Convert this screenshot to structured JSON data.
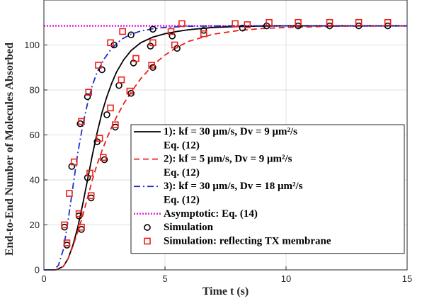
{
  "chart_data": {
    "type": "line",
    "xlabel": "Time t (s)",
    "ylabel": "End-to-End Number of Molecules Absorbed",
    "xlim": [
      0,
      15
    ],
    "ylim": [
      0,
      120
    ],
    "xticks": [
      0,
      5,
      10,
      15
    ],
    "yticks": [
      0,
      20,
      40,
      60,
      80,
      100
    ],
    "grid": true,
    "legend_position": "bottom-right",
    "legend": [
      {
        "id": "s1",
        "lines": [
          "1): kf = 30 μm/s, Dv = 9 μm²/s",
          "Eq. (12)"
        ]
      },
      {
        "id": "s2",
        "lines": [
          "2): kf = 5 μm/s, Dv = 9 μm²/s",
          "Eq. (12)"
        ]
      },
      {
        "id": "s3",
        "lines": [
          "3): kf = 30 μm/s, Dv = 18 μm²/s",
          "Eq. (12)"
        ]
      },
      {
        "id": "asym",
        "lines": [
          "Asymptotic: Eq. (14)"
        ]
      },
      {
        "id": "sim",
        "lines": [
          "Simulation"
        ]
      },
      {
        "id": "simref",
        "lines": [
          "Simulation: reflecting TX membrane"
        ]
      }
    ],
    "asymptote": 108.5,
    "series": [
      {
        "id": "s1",
        "color": "#000000",
        "dash": "solid",
        "x": [
          0,
          0.5,
          0.8,
          1.0,
          1.2,
          1.4,
          1.6,
          1.8,
          2.0,
          2.2,
          2.4,
          2.6,
          2.8,
          3.0,
          3.3,
          3.6,
          4.0,
          4.5,
          5.0,
          5.5,
          6.0,
          7.0,
          8.0,
          9.0,
          10.0,
          12.0,
          15.0
        ],
        "y": [
          0,
          0,
          1.5,
          5,
          11,
          19,
          29,
          40,
          51,
          61,
          70,
          77,
          83,
          88,
          93.5,
          97.5,
          101,
          103.5,
          105,
          106,
          106.8,
          107.8,
          108.2,
          108.4,
          108.5,
          108.5,
          108.5
        ]
      },
      {
        "id": "s2",
        "color": "#e8221b",
        "dash": "dashed",
        "x": [
          0,
          0.5,
          0.8,
          1.0,
          1.2,
          1.4,
          1.6,
          1.8,
          2.0,
          2.2,
          2.4,
          2.6,
          2.8,
          3.0,
          3.3,
          3.6,
          4.0,
          4.5,
          5.0,
          5.5,
          6.0,
          7.0,
          8.0,
          9.0,
          10.0,
          12.0,
          15.0
        ],
        "y": [
          0,
          0,
          1.5,
          5,
          10.5,
          17,
          24,
          32,
          40,
          47,
          53,
          58.5,
          63.5,
          68,
          74,
          79,
          85,
          91,
          95.5,
          99,
          101.7,
          104.8,
          106.4,
          107.3,
          107.8,
          108.3,
          108.5
        ]
      },
      {
        "id": "s3",
        "color": "#1f2fc8",
        "dash": "dashdot",
        "x": [
          0,
          0.4,
          0.6,
          0.8,
          1.0,
          1.2,
          1.4,
          1.6,
          1.8,
          2.0,
          2.2,
          2.5,
          2.8,
          3.2,
          3.6,
          4.0,
          4.5,
          5.0,
          6.0,
          7.0,
          8.0,
          10.0,
          15.0
        ],
        "y": [
          0,
          0,
          2,
          9,
          22,
          37,
          52,
          64,
          74,
          82,
          88,
          94,
          98.5,
          102.5,
          104.8,
          106.2,
          107.2,
          107.8,
          108.3,
          108.4,
          108.5,
          108.5,
          108.5
        ]
      }
    ],
    "simulation_points": [
      {
        "x": 0.85,
        "y": 19
      },
      {
        "x": 1.15,
        "y": 46
      },
      {
        "x": 1.5,
        "y": 65
      },
      {
        "x": 1.8,
        "y": 77
      },
      {
        "x": 2.4,
        "y": 89
      },
      {
        "x": 2.9,
        "y": 100
      },
      {
        "x": 3.6,
        "y": 104.5
      },
      {
        "x": 4.5,
        "y": 107
      },
      {
        "x": 0.95,
        "y": 11
      },
      {
        "x": 1.45,
        "y": 24
      },
      {
        "x": 1.8,
        "y": 41
      },
      {
        "x": 2.2,
        "y": 57
      },
      {
        "x": 2.6,
        "y": 69
      },
      {
        "x": 3.1,
        "y": 82
      },
      {
        "x": 3.7,
        "y": 92
      },
      {
        "x": 4.4,
        "y": 99.5
      },
      {
        "x": 5.3,
        "y": 104
      },
      {
        "x": 6.6,
        "y": 106.5
      },
      {
        "x": 8.2,
        "y": 107.5
      },
      {
        "x": 1.55,
        "y": 18
      },
      {
        "x": 1.95,
        "y": 32
      },
      {
        "x": 2.5,
        "y": 49
      },
      {
        "x": 2.95,
        "y": 63.5
      },
      {
        "x": 3.6,
        "y": 78.5
      },
      {
        "x": 4.5,
        "y": 90
      },
      {
        "x": 5.5,
        "y": 98.5
      },
      {
        "x": 9.2,
        "y": 108.5
      },
      {
        "x": 10.5,
        "y": 108.5
      },
      {
        "x": 11.8,
        "y": 108.5
      },
      {
        "x": 13.0,
        "y": 108.5
      },
      {
        "x": 14.2,
        "y": 108.5
      }
    ],
    "simulation_reflecting_points": [
      {
        "x": 0.85,
        "y": 20
      },
      {
        "x": 1.05,
        "y": 34
      },
      {
        "x": 1.25,
        "y": 48
      },
      {
        "x": 1.55,
        "y": 66
      },
      {
        "x": 1.85,
        "y": 79
      },
      {
        "x": 2.25,
        "y": 91
      },
      {
        "x": 2.75,
        "y": 101
      },
      {
        "x": 3.25,
        "y": 106
      },
      {
        "x": 0.95,
        "y": 12
      },
      {
        "x": 1.45,
        "y": 25
      },
      {
        "x": 1.9,
        "y": 43
      },
      {
        "x": 2.3,
        "y": 58.5
      },
      {
        "x": 2.75,
        "y": 72
      },
      {
        "x": 3.2,
        "y": 84.5
      },
      {
        "x": 3.8,
        "y": 94
      },
      {
        "x": 4.5,
        "y": 101
      },
      {
        "x": 5.25,
        "y": 106
      },
      {
        "x": 5.7,
        "y": 109.5
      },
      {
        "x": 6.6,
        "y": 105
      },
      {
        "x": 7.9,
        "y": 109.5
      },
      {
        "x": 1.55,
        "y": 19
      },
      {
        "x": 1.95,
        "y": 33
      },
      {
        "x": 2.45,
        "y": 50
      },
      {
        "x": 2.95,
        "y": 64.5
      },
      {
        "x": 3.55,
        "y": 79.5
      },
      {
        "x": 4.45,
        "y": 91
      },
      {
        "x": 5.4,
        "y": 100
      },
      {
        "x": 8.4,
        "y": 109
      },
      {
        "x": 9.3,
        "y": 110
      },
      {
        "x": 10.5,
        "y": 110
      },
      {
        "x": 11.8,
        "y": 110
      },
      {
        "x": 13.0,
        "y": 110
      },
      {
        "x": 14.2,
        "y": 110
      }
    ]
  }
}
